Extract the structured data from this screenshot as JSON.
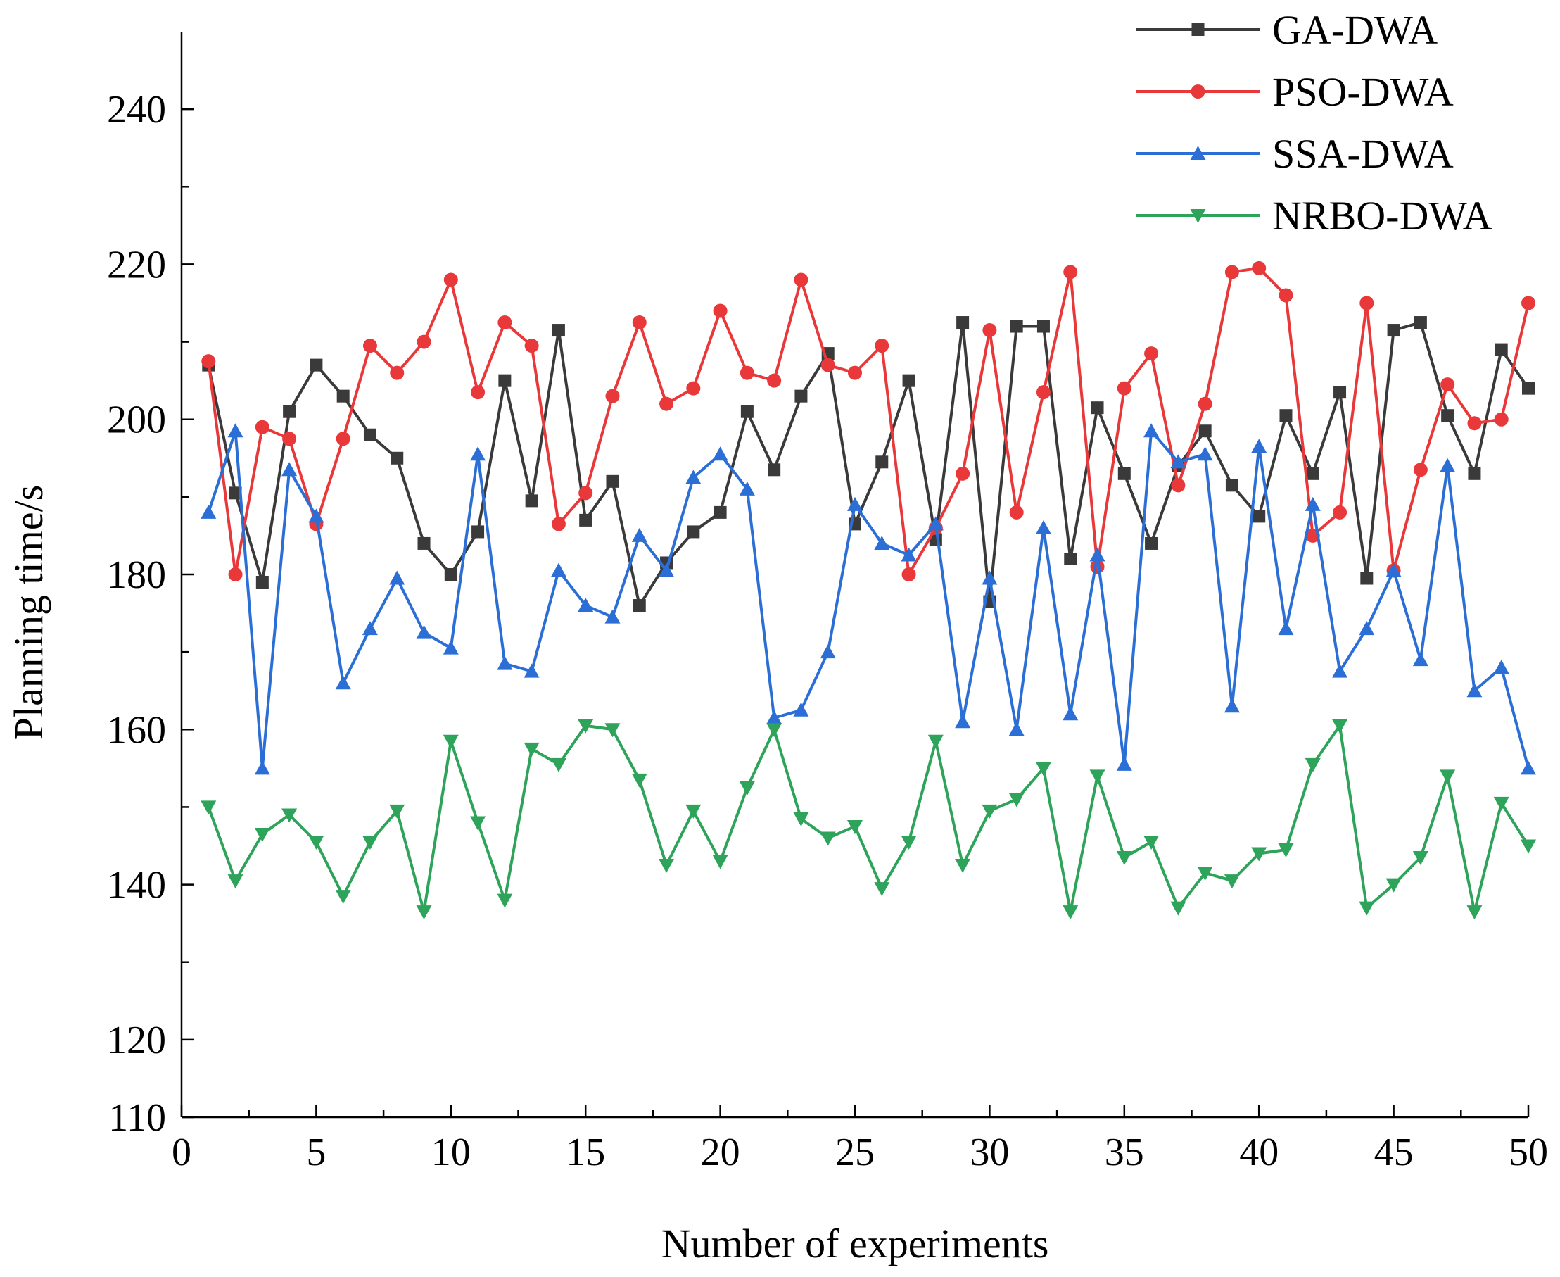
{
  "chart_data": {
    "type": "line",
    "title": "",
    "xlabel": "Number of experiments",
    "ylabel": "Planning time/s",
    "xlim": [
      0,
      50
    ],
    "ylim": [
      110,
      250
    ],
    "xticks": [
      0,
      5,
      10,
      15,
      20,
      25,
      30,
      35,
      40,
      45,
      50
    ],
    "yticks": [
      110,
      120,
      140,
      160,
      180,
      200,
      220,
      240
    ],
    "grid": false,
    "legend_position": "top-right",
    "x": [
      1,
      2,
      3,
      4,
      5,
      6,
      7,
      8,
      9,
      10,
      11,
      12,
      13,
      14,
      15,
      16,
      17,
      18,
      19,
      20,
      21,
      22,
      23,
      24,
      25,
      26,
      27,
      28,
      29,
      30,
      31,
      32,
      33,
      34,
      35,
      36,
      37,
      38,
      39,
      40,
      41,
      42,
      43,
      44,
      45,
      46,
      47,
      48,
      49,
      50
    ],
    "series": [
      {
        "name": "GA-DWA",
        "color": "#3a3a3a",
        "marker": "square",
        "values": [
          207,
          190.5,
          179,
          201,
          207,
          203,
          198,
          195,
          184,
          180,
          185.5,
          205,
          189.5,
          211.5,
          187,
          192,
          176,
          181.5,
          185.5,
          188,
          201,
          193.5,
          203,
          208.5,
          186.5,
          194.5,
          205,
          184.5,
          212.5,
          176.5,
          212,
          212,
          182,
          201.5,
          193,
          184,
          194,
          198.5,
          191.5,
          187.5,
          200.5,
          193,
          203.5,
          179.5,
          211.5,
          212.5,
          200.5,
          193,
          209,
          204
        ]
      },
      {
        "name": "PSO-DWA",
        "color": "#e8383a",
        "marker": "circle",
        "values": [
          207.5,
          180,
          199,
          197.5,
          186.5,
          197.5,
          209.5,
          206,
          210,
          218,
          203.5,
          212.5,
          209.5,
          186.5,
          190.5,
          203,
          212.5,
          202,
          204,
          214,
          206,
          205,
          218,
          207,
          206,
          209.5,
          180,
          186,
          193,
          211.5,
          188,
          203.5,
          219,
          181,
          204,
          208.5,
          191.5,
          202,
          219,
          219.5,
          216,
          185,
          188,
          215,
          180.5,
          193.5,
          204.5,
          199.5,
          200,
          215
        ]
      },
      {
        "name": "SSA-DWA",
        "color": "#2b6fd6",
        "marker": "triangle-up",
        "values": [
          188,
          198.5,
          155,
          193.5,
          187.5,
          166,
          173,
          179.5,
          172.5,
          170.5,
          195.5,
          168.5,
          167.5,
          180.5,
          176,
          174.5,
          185,
          180.5,
          192.5,
          195.5,
          191,
          161.5,
          162.5,
          170,
          189,
          184,
          182.5,
          186.5,
          161,
          179.5,
          160,
          186,
          162,
          182.5,
          155.5,
          198.5,
          194.5,
          195.5,
          163,
          196.5,
          173,
          189,
          167.5,
          173,
          180.5,
          169,
          194,
          165,
          168,
          155
        ]
      },
      {
        "name": "NRBO-DWA",
        "color": "#2ea35a",
        "marker": "triangle-down",
        "values": [
          150,
          140.5,
          146.5,
          149,
          145.5,
          138.5,
          145.5,
          149.5,
          136.5,
          158.5,
          148,
          138,
          157.5,
          155.5,
          160.5,
          160,
          153.5,
          142.5,
          149.5,
          143,
          152.5,
          160,
          148.5,
          146,
          147.5,
          139.5,
          145.5,
          158.5,
          142.5,
          149.5,
          151,
          155,
          136.5,
          154,
          143.5,
          145.5,
          137,
          141.5,
          140.5,
          144,
          144.5,
          155.5,
          160.5,
          137,
          140,
          143.5,
          154,
          136.5,
          150.5,
          145
        ]
      }
    ]
  }
}
